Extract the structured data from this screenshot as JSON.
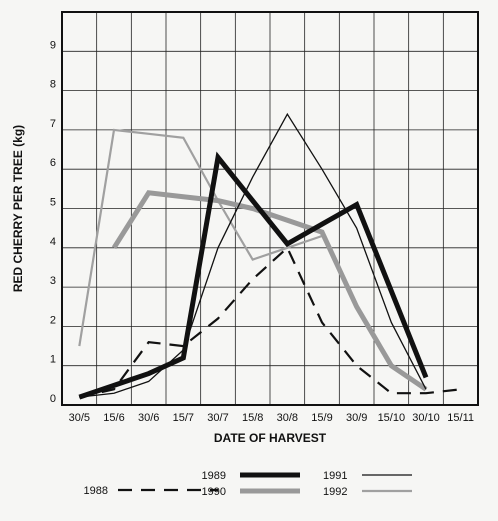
{
  "chart_data": {
    "type": "line",
    "title": "",
    "xlabel": "DATE OF HARVEST",
    "ylabel": "RED CHERRY PER TREE  (kg)",
    "categories": [
      "30/5",
      "15/6",
      "30/6",
      "15/7",
      "30/7",
      "15/8",
      "30/8",
      "15/9",
      "30/9",
      "15/10",
      "30/10",
      "15/11"
    ],
    "ylim": [
      0,
      10
    ],
    "yticks": [
      0,
      1,
      2,
      3,
      4,
      5,
      6,
      7,
      8,
      9
    ],
    "grid": true,
    "legend": "bottom",
    "series": [
      {
        "name": "1988",
        "color": "#111111",
        "style": "dashed",
        "values": [
          0.2,
          0.4,
          1.6,
          1.5,
          2.2,
          3.2,
          4.0,
          2.1,
          1.0,
          0.3,
          0.3,
          0.4
        ]
      },
      {
        "name": "1989",
        "color": "#111111",
        "style": "thick",
        "values": [
          0.2,
          0.5,
          0.8,
          1.2,
          6.3,
          5.2,
          4.1,
          4.6,
          5.1,
          2.9,
          0.7,
          null
        ]
      },
      {
        "name": "1990",
        "color": "#999999",
        "style": "thick",
        "values": [
          null,
          4.0,
          5.4,
          5.3,
          5.2,
          5.0,
          4.7,
          4.4,
          2.5,
          1.0,
          0.4,
          null
        ]
      },
      {
        "name": "1991",
        "color": "#111111",
        "style": "thin",
        "values": [
          0.2,
          0.3,
          0.6,
          1.4,
          4.0,
          5.8,
          7.4,
          6.0,
          4.5,
          2.1,
          0.4,
          null
        ]
      },
      {
        "name": "1992",
        "color": "#a0a0a0",
        "style": "medium",
        "values": [
          1.5,
          7.0,
          6.9,
          6.8,
          5.2,
          3.7,
          4.0,
          4.3,
          null,
          null,
          null,
          null
        ]
      }
    ]
  }
}
